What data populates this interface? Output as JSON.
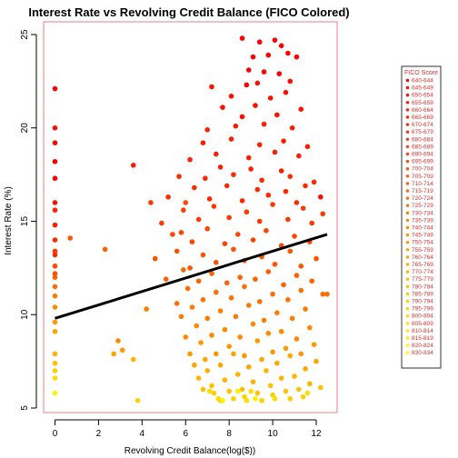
{
  "chart_data": {
    "type": "scatter",
    "title": "Interest Rate vs Revolving Credit Balance (FICO Colored)",
    "xlabel": "Revolving Credit Balance(log($))",
    "ylabel": "Interest Rate (%)",
    "xlim": [
      -0.3,
      12.6
    ],
    "ylim": [
      4.9,
      25.6
    ],
    "x_ticks": [
      0,
      2,
      4,
      6,
      8,
      10,
      12
    ],
    "y_ticks": [
      5,
      10,
      15,
      20,
      25
    ],
    "grid": false,
    "legend_position": "right",
    "colors": {
      "frame": "#e8808a",
      "regression_line": "#000000",
      "legend_text": "#e03030",
      "low_fico": "#ff0000",
      "high_fico": "#ffff00"
    },
    "trend_line": {
      "x": [
        0,
        12.5
      ],
      "y": [
        9.8,
        14.3
      ]
    },
    "legend": {
      "title": "FICO Score",
      "entries": [
        "640-644",
        "645-649",
        "650-654",
        "655-659",
        "660-664",
        "665-669",
        "670-674",
        "675-679",
        "680-684",
        "685-689",
        "690-694",
        "695-699",
        "700-704",
        "705-709",
        "710-714",
        "715-719",
        "720-724",
        "725-729",
        "730-734",
        "735-739",
        "740-744",
        "745-749",
        "750-754",
        "755-759",
        "760-764",
        "765-769",
        "770-774",
        "775-779",
        "780-784",
        "785-789",
        "790-794",
        "795-799",
        "800-804",
        "805-809",
        "810-814",
        "815-819",
        "820-824",
        "830-834"
      ]
    },
    "series": [
      {
        "fico_bin": 0,
        "points": [
          [
            0,
            22.1
          ],
          [
            0,
            19.2
          ],
          [
            0,
            18.2
          ],
          [
            0,
            17.3
          ],
          [
            8.6,
            24.8
          ],
          [
            9.4,
            24.6
          ],
          [
            9.1,
            23.8
          ],
          [
            10.1,
            24.7
          ],
          [
            10.4,
            24.4
          ],
          [
            9.8,
            23.9
          ],
          [
            8.9,
            23.1
          ],
          [
            10.7,
            24.0
          ],
          [
            11.1,
            23.8
          ],
          [
            9.6,
            23.0
          ],
          [
            10.3,
            22.9
          ],
          [
            8.8,
            22.3
          ]
        ]
      },
      {
        "fico_bin": 2,
        "points": [
          [
            0,
            20.0
          ],
          [
            0,
            16.0
          ],
          [
            7.2,
            22.2
          ],
          [
            9.3,
            22.4
          ],
          [
            10.8,
            22.5
          ],
          [
            8.1,
            21.7
          ],
          [
            9.9,
            21.6
          ],
          [
            10.6,
            21.9
          ],
          [
            7.7,
            21.1
          ],
          [
            9.2,
            21.2
          ],
          [
            11.3,
            21.0
          ],
          [
            8.6,
            20.6
          ],
          [
            10.2,
            20.7
          ],
          [
            12.2,
            16.3
          ]
        ]
      },
      {
        "fico_bin": 4,
        "points": [
          [
            0,
            15.6
          ],
          [
            0,
            14.8
          ],
          [
            3.6,
            18.0
          ],
          [
            7.0,
            19.9
          ],
          [
            8.3,
            20.1
          ],
          [
            9.6,
            20.2
          ],
          [
            10.9,
            20.0
          ],
          [
            6.8,
            19.2
          ],
          [
            8.1,
            19.4
          ],
          [
            9.4,
            19.1
          ],
          [
            10.5,
            19.3
          ],
          [
            11.6,
            19.0
          ],
          [
            7.4,
            18.6
          ],
          [
            8.9,
            18.4
          ],
          [
            10.1,
            18.7
          ],
          [
            11.2,
            18.5
          ],
          [
            6.2,
            18.3
          ],
          [
            7.6,
            17.9
          ],
          [
            9.0,
            17.8
          ],
          [
            10.4,
            17.7
          ]
        ]
      },
      {
        "fico_bin": 6,
        "points": [
          [
            0,
            14.0
          ],
          [
            0,
            13.2
          ],
          [
            5.7,
            17.4
          ],
          [
            6.9,
            17.3
          ],
          [
            8.2,
            17.5
          ],
          [
            9.5,
            17.2
          ],
          [
            10.8,
            17.4
          ],
          [
            11.9,
            17.1
          ],
          [
            6.4,
            16.8
          ],
          [
            7.9,
            16.9
          ],
          [
            9.3,
            16.7
          ],
          [
            10.6,
            16.6
          ],
          [
            11.5,
            16.9
          ],
          [
            5.2,
            16.3
          ],
          [
            7.1,
            16.2
          ],
          [
            8.6,
            16.1
          ],
          [
            9.8,
            16.4
          ],
          [
            11.1,
            16.0
          ]
        ]
      },
      {
        "fico_bin": 8,
        "points": [
          [
            0,
            13.4
          ],
          [
            4.4,
            16.0
          ],
          [
            5.9,
            15.6
          ],
          [
            7.3,
            15.8
          ],
          [
            8.8,
            15.5
          ],
          [
            10.0,
            15.9
          ],
          [
            11.4,
            15.7
          ],
          [
            12.3,
            15.4
          ],
          [
            6.6,
            15.1
          ],
          [
            8.0,
            15.2
          ],
          [
            9.4,
            15.0
          ],
          [
            10.7,
            15.1
          ],
          [
            11.8,
            14.9
          ],
          [
            4.9,
            14.9
          ]
        ]
      },
      {
        "fico_bin": 10,
        "points": [
          [
            0,
            12.6
          ],
          [
            5.8,
            14.4
          ],
          [
            7.0,
            14.6
          ],
          [
            8.4,
            14.3
          ],
          [
            9.7,
            14.5
          ],
          [
            11.0,
            14.2
          ],
          [
            6.3,
            13.9
          ],
          [
            7.8,
            13.8
          ],
          [
            9.1,
            14.0
          ],
          [
            10.4,
            13.7
          ],
          [
            11.7,
            13.9
          ],
          [
            5.4,
            14.3
          ],
          [
            6.0,
            16.0
          ]
        ]
      },
      {
        "fico_bin": 12,
        "points": [
          [
            0,
            12.2
          ],
          [
            0.7,
            14.1
          ],
          [
            5.6,
            13.4
          ],
          [
            6.8,
            13.2
          ],
          [
            8.2,
            13.5
          ],
          [
            9.5,
            13.1
          ],
          [
            10.8,
            13.4
          ],
          [
            12.0,
            13.0
          ],
          [
            7.4,
            12.8
          ],
          [
            8.7,
            12.9
          ],
          [
            10.1,
            12.7
          ],
          [
            11.3,
            12.6
          ],
          [
            6.2,
            12.5
          ],
          [
            4.6,
            13.0
          ]
        ]
      },
      {
        "fico_bin": 14,
        "points": [
          [
            0,
            12.0
          ],
          [
            5.9,
            12.4
          ],
          [
            7.2,
            12.2
          ],
          [
            8.5,
            12.0
          ],
          [
            9.8,
            12.3
          ],
          [
            11.1,
            12.1
          ],
          [
            6.6,
            11.8
          ],
          [
            7.9,
            11.7
          ],
          [
            9.2,
            11.9
          ],
          [
            10.5,
            11.6
          ],
          [
            11.8,
            11.8
          ],
          [
            5.1,
            11.9
          ],
          [
            2.3,
            13.5
          ]
        ]
      },
      {
        "fico_bin": 16,
        "points": [
          [
            0,
            11.5
          ],
          [
            6.1,
            11.4
          ],
          [
            7.4,
            11.2
          ],
          [
            8.7,
            11.5
          ],
          [
            10.0,
            11.1
          ],
          [
            11.3,
            11.3
          ],
          [
            12.3,
            11.1
          ],
          [
            6.8,
            10.8
          ],
          [
            8.1,
            10.9
          ],
          [
            9.4,
            10.7
          ],
          [
            10.7,
            10.8
          ],
          [
            5.6,
            10.6
          ],
          [
            12.5,
            11.1
          ]
        ]
      },
      {
        "fico_bin": 18,
        "points": [
          [
            0,
            11.0
          ],
          [
            6.3,
            10.4
          ],
          [
            7.6,
            10.2
          ],
          [
            8.9,
            10.5
          ],
          [
            10.2,
            10.1
          ],
          [
            11.5,
            10.3
          ],
          [
            7.0,
            9.8
          ],
          [
            8.3,
            9.9
          ],
          [
            9.6,
            9.7
          ],
          [
            10.9,
            9.8
          ],
          [
            5.8,
            9.9
          ],
          [
            4.2,
            10.3
          ]
        ]
      },
      {
        "fico_bin": 20,
        "points": [
          [
            0,
            10.4
          ],
          [
            6.5,
            9.4
          ],
          [
            7.8,
            9.2
          ],
          [
            9.1,
            9.5
          ],
          [
            10.4,
            9.1
          ],
          [
            11.7,
            9.3
          ],
          [
            7.2,
            8.9
          ],
          [
            8.5,
            8.8
          ],
          [
            9.8,
            9.0
          ],
          [
            11.1,
            8.7
          ],
          [
            6.0,
            8.8
          ],
          [
            2.9,
            8.6
          ]
        ]
      },
      {
        "fico_bin": 22,
        "points": [
          [
            0,
            9.6
          ],
          [
            6.7,
            8.5
          ],
          [
            8.0,
            8.3
          ],
          [
            9.3,
            8.6
          ],
          [
            10.6,
            8.2
          ],
          [
            11.9,
            8.4
          ],
          [
            7.4,
            7.9
          ],
          [
            8.7,
            7.8
          ],
          [
            10.0,
            8.0
          ],
          [
            11.3,
            7.9
          ],
          [
            6.2,
            7.9
          ],
          [
            3.1,
            8.1
          ]
        ]
      },
      {
        "fico_bin": 24,
        "points": [
          [
            0,
            9.1
          ],
          [
            6.9,
            7.6
          ],
          [
            8.2,
            7.9
          ],
          [
            9.5,
            7.6
          ],
          [
            10.8,
            7.8
          ],
          [
            12.0,
            7.5
          ],
          [
            7.6,
            7.3
          ],
          [
            8.9,
            7.2
          ],
          [
            10.2,
            7.4
          ],
          [
            11.5,
            7.1
          ],
          [
            6.4,
            7.3
          ],
          [
            2.7,
            7.9
          ]
        ]
      },
      {
        "fico_bin": 26,
        "points": [
          [
            0,
            7.9
          ],
          [
            7.0,
            7.0
          ],
          [
            8.4,
            6.8
          ],
          [
            9.7,
            7.0
          ],
          [
            11.0,
            6.7
          ],
          [
            7.8,
            6.5
          ],
          [
            9.1,
            6.4
          ],
          [
            10.4,
            6.6
          ],
          [
            11.7,
            6.3
          ],
          [
            6.6,
            6.6
          ],
          [
            3.6,
            7.6
          ]
        ]
      },
      {
        "fico_bin": 28,
        "points": [
          [
            0,
            7.4
          ],
          [
            7.2,
            6.2
          ],
          [
            8.6,
            6.0
          ],
          [
            9.9,
            6.2
          ],
          [
            11.2,
            6.0
          ],
          [
            8.0,
            5.9
          ],
          [
            9.3,
            5.8
          ],
          [
            10.6,
            5.9
          ],
          [
            6.8,
            6.0
          ],
          [
            12.2,
            6.1
          ]
        ]
      },
      {
        "fico_bin": 30,
        "points": [
          [
            0,
            7.0
          ],
          [
            7.3,
            5.8
          ],
          [
            8.7,
            5.6
          ],
          [
            10.0,
            5.7
          ],
          [
            11.4,
            5.6
          ],
          [
            8.2,
            5.5
          ],
          [
            9.5,
            5.4
          ],
          [
            10.8,
            5.5
          ],
          [
            7.6,
            5.4
          ],
          [
            3.8,
            5.4
          ]
        ]
      },
      {
        "fico_bin": 32,
        "points": [
          [
            0,
            6.6
          ],
          [
            7.5,
            5.5
          ],
          [
            8.8,
            5.4
          ],
          [
            10.1,
            5.5
          ],
          [
            9.0,
            5.9
          ],
          [
            7.1,
            5.9
          ],
          [
            11.6,
            5.8
          ]
        ]
      },
      {
        "fico_bin": 35,
        "points": [
          [
            0,
            5.8
          ],
          [
            7.7,
            5.4
          ],
          [
            9.2,
            5.5
          ],
          [
            8.4,
            5.9
          ]
        ]
      }
    ]
  }
}
